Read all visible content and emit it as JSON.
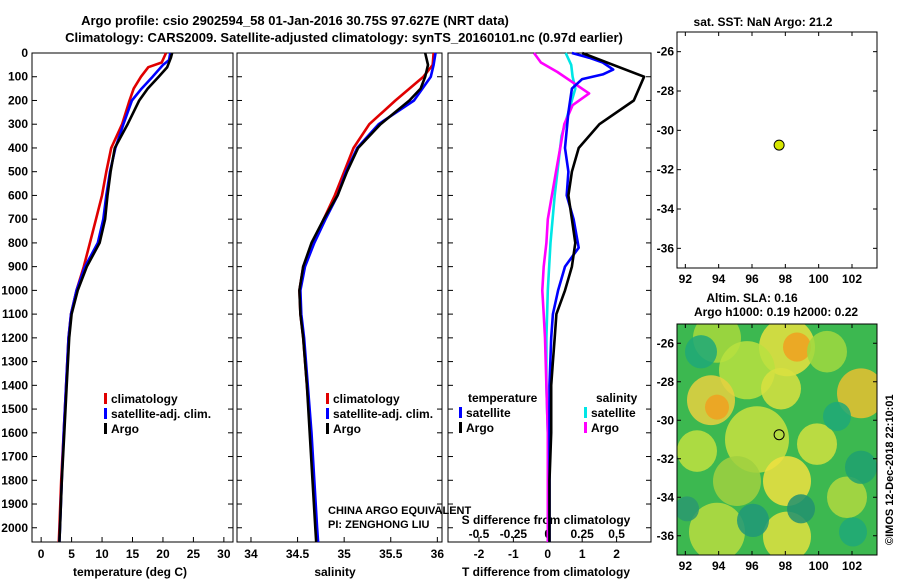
{
  "header": {
    "line1": "Argo profile: csio 2902594_58 01-Jan-2016 30.75S 97.627E (NRT data)",
    "line2": "Climatology: CARS2009. Satellite-adjusted climatology: synTS_20160101.nc (0.97d earlier)"
  },
  "depth_axis": {
    "ticks": [
      "0",
      "100",
      "200",
      "300",
      "400",
      "500",
      "600",
      "700",
      "800",
      "900",
      "1000",
      "1100",
      "1200",
      "1300",
      "1400",
      "1500",
      "1600",
      "1700",
      "1800",
      "1900",
      "2000"
    ],
    "ylim": [
      0,
      2060
    ]
  },
  "colors": {
    "climatology": "#e00000",
    "satellite": "#0000ff",
    "argo": "#000000",
    "sal_satellite": "#00e6e6",
    "sal_argo": "#ff00ff",
    "marker": "#d6e600"
  },
  "chart_data": [
    {
      "type": "line",
      "panel": "temperature",
      "xlabel": "temperature (deg C)",
      "xlim": [
        -1.5,
        31.5
      ],
      "xticks": [
        "0",
        "5",
        "10",
        "15",
        "20",
        "25",
        "30"
      ],
      "legend": [
        "climatology",
        "satellite-adj. clim.",
        "Argo"
      ],
      "series": [
        {
          "name": "climatology",
          "points": [
            [
              20.5,
              0
            ],
            [
              19.8,
              40
            ],
            [
              17.6,
              60
            ],
            [
              16.4,
              100
            ],
            [
              15.2,
              150
            ],
            [
              14.5,
              200
            ],
            [
              13.3,
              300
            ],
            [
              11.5,
              400
            ],
            [
              10.7,
              500
            ],
            [
              10.0,
              600
            ],
            [
              9.0,
              700
            ],
            [
              8.0,
              800
            ],
            [
              7.0,
              900
            ],
            [
              5.8,
              1000
            ],
            [
              4.9,
              1100
            ],
            [
              4.5,
              1200
            ],
            [
              4.1,
              1400
            ],
            [
              3.7,
              1600
            ],
            [
              3.3,
              1800
            ],
            [
              3.0,
              2000
            ],
            [
              2.9,
              2060
            ]
          ]
        },
        {
          "name": "satellite",
          "points": [
            [
              21.2,
              0
            ],
            [
              21.0,
              30
            ],
            [
              20.0,
              50
            ],
            [
              18.3,
              100
            ],
            [
              16.5,
              150
            ],
            [
              14.9,
              200
            ],
            [
              13.5,
              300
            ],
            [
              12.2,
              400
            ],
            [
              11.3,
              500
            ],
            [
              10.7,
              600
            ],
            [
              10.2,
              700
            ],
            [
              9.3,
              800
            ],
            [
              7.2,
              900
            ],
            [
              5.8,
              1000
            ],
            [
              4.9,
              1100
            ],
            [
              4.5,
              1200
            ],
            [
              4.1,
              1400
            ],
            [
              3.7,
              1600
            ],
            [
              3.4,
              1800
            ],
            [
              3.1,
              2000
            ],
            [
              3.0,
              2060
            ]
          ]
        },
        {
          "name": "Argo",
          "points": [
            [
              21.5,
              0
            ],
            [
              21.3,
              20
            ],
            [
              20.7,
              60
            ],
            [
              19.3,
              100
            ],
            [
              17.5,
              150
            ],
            [
              16.1,
              200
            ],
            [
              14.2,
              300
            ],
            [
              12.1,
              400
            ],
            [
              11.4,
              500
            ],
            [
              10.9,
              600
            ],
            [
              10.5,
              700
            ],
            [
              9.6,
              800
            ],
            [
              7.5,
              900
            ],
            [
              6.0,
              1000
            ],
            [
              5.0,
              1100
            ],
            [
              4.6,
              1200
            ],
            [
              4.2,
              1400
            ],
            [
              3.8,
              1600
            ],
            [
              3.4,
              1800
            ],
            [
              3.1,
              2000
            ],
            [
              3.0,
              2060
            ]
          ]
        }
      ]
    },
    {
      "type": "line",
      "panel": "salinity",
      "xlabel": "salinity",
      "xlim": [
        33.85,
        36.05
      ],
      "xticks": [
        "34",
        "34.5",
        "35",
        "35.5",
        "36"
      ],
      "legend": [
        "climatology",
        "satellite-adj. clim.",
        "Argo"
      ],
      "credit": [
        "CHINA ARGO EQUIVALENT",
        "PI: ZENGHONG LIU"
      ],
      "series": [
        {
          "name": "climatology",
          "points": [
            [
              35.96,
              0
            ],
            [
              35.95,
              50
            ],
            [
              35.85,
              100
            ],
            [
              35.55,
              200
            ],
            [
              35.27,
              300
            ],
            [
              35.1,
              400
            ],
            [
              35.0,
              500
            ],
            [
              34.9,
              600
            ],
            [
              34.78,
              700
            ],
            [
              34.66,
              800
            ],
            [
              34.56,
              900
            ],
            [
              34.52,
              1000
            ],
            [
              34.53,
              1100
            ],
            [
              34.56,
              1200
            ],
            [
              34.6,
              1400
            ],
            [
              34.64,
              1600
            ],
            [
              34.67,
              1800
            ],
            [
              34.7,
              2000
            ],
            [
              34.71,
              2060
            ]
          ]
        },
        {
          "name": "satellite",
          "points": [
            [
              35.98,
              0
            ],
            [
              35.96,
              50
            ],
            [
              35.93,
              100
            ],
            [
              35.75,
              200
            ],
            [
              35.37,
              300
            ],
            [
              35.14,
              400
            ],
            [
              35.02,
              500
            ],
            [
              34.93,
              600
            ],
            [
              34.8,
              700
            ],
            [
              34.68,
              800
            ],
            [
              34.58,
              900
            ],
            [
              34.53,
              1000
            ],
            [
              34.54,
              1100
            ],
            [
              34.57,
              1200
            ],
            [
              34.61,
              1400
            ],
            [
              34.65,
              1600
            ],
            [
              34.68,
              1800
            ],
            [
              34.71,
              2000
            ],
            [
              34.72,
              2060
            ]
          ]
        },
        {
          "name": "Argo",
          "points": [
            [
              35.87,
              0
            ],
            [
              35.9,
              50
            ],
            [
              35.87,
              100
            ],
            [
              35.82,
              150
            ],
            [
              35.7,
              200
            ],
            [
              35.39,
              300
            ],
            [
              35.15,
              400
            ],
            [
              35.03,
              500
            ],
            [
              34.93,
              600
            ],
            [
              34.78,
              700
            ],
            [
              34.65,
              800
            ],
            [
              34.56,
              900
            ],
            [
              34.52,
              1000
            ],
            [
              34.53,
              1100
            ],
            [
              34.56,
              1200
            ],
            [
              34.6,
              1400
            ],
            [
              34.63,
              1600
            ],
            [
              34.66,
              1800
            ],
            [
              34.69,
              2000
            ],
            [
              34.7,
              2060
            ]
          ]
        }
      ]
    },
    {
      "type": "line",
      "panel": "differences",
      "xlabel": "T difference from climatology",
      "xlabel_top": "S difference from climatology",
      "xlim": [
        -2.9,
        3.0
      ],
      "xticks": [
        "-2",
        "-1",
        "0",
        "1",
        "2"
      ],
      "sticks": [
        "-0.5",
        "-0.25",
        "0",
        "0.25",
        "0.5"
      ],
      "legend_t": {
        "title": "temperature",
        "items": [
          "satellite",
          "Argo"
        ]
      },
      "legend_s": {
        "title": "salinity",
        "items": [
          "satellite",
          "Argo"
        ]
      },
      "series": [
        {
          "name": "T satellite",
          "points": [
            [
              0.7,
              0
            ],
            [
              1.2,
              20
            ],
            [
              1.6,
              40
            ],
            [
              1.9,
              70
            ],
            [
              1.6,
              90
            ],
            [
              1.0,
              110
            ],
            [
              0.7,
              150
            ],
            [
              0.6,
              250
            ],
            [
              0.5,
              400
            ],
            [
              0.6,
              500
            ],
            [
              0.55,
              600
            ],
            [
              0.75,
              700
            ],
            [
              0.9,
              820
            ],
            [
              0.5,
              900
            ],
            [
              0.3,
              1000
            ],
            [
              0.15,
              1100
            ],
            [
              0.1,
              1200
            ],
            [
              0.05,
              1400
            ],
            [
              0.05,
              1600
            ],
            [
              0.05,
              1800
            ],
            [
              0.05,
              2060
            ]
          ]
        },
        {
          "name": "T Argo",
          "points": [
            [
              1.0,
              0
            ],
            [
              2.8,
              100
            ],
            [
              2.5,
              200
            ],
            [
              1.5,
              300
            ],
            [
              0.9,
              400
            ],
            [
              0.7,
              500
            ],
            [
              0.6,
              600
            ],
            [
              0.7,
              700
            ],
            [
              0.8,
              800
            ],
            [
              0.7,
              900
            ],
            [
              0.5,
              1000
            ],
            [
              0.25,
              1100
            ],
            [
              0.2,
              1200
            ],
            [
              0.15,
              1300
            ],
            [
              0.1,
              1400
            ],
            [
              0.1,
              1600
            ],
            [
              0.05,
              1800
            ],
            [
              0.05,
              2060
            ]
          ]
        },
        {
          "name": "S satellite",
          "points": [
            [
              0.13,
              0
            ],
            [
              0.17,
              50
            ],
            [
              0.18,
              100
            ],
            [
              0.2,
              150
            ],
            [
              0.15,
              250
            ],
            [
              0.1,
              350
            ],
            [
              0.08,
              450
            ],
            [
              0.05,
              600
            ],
            [
              0.02,
              800
            ],
            [
              0.0,
              1000
            ],
            [
              -0.01,
              1200
            ],
            [
              -0.01,
              1400
            ],
            [
              0.0,
              1600
            ],
            [
              0.0,
              1800
            ],
            [
              0.0,
              2060
            ]
          ]
        },
        {
          "name": "S Argo",
          "points": [
            [
              -0.1,
              0
            ],
            [
              -0.05,
              40
            ],
            [
              0.07,
              80
            ],
            [
              0.3,
              170
            ],
            [
              0.18,
              220
            ],
            [
              0.12,
              300
            ],
            [
              0.09,
              400
            ],
            [
              0.06,
              500
            ],
            [
              0.03,
              600
            ],
            [
              0.0,
              700
            ],
            [
              -0.01,
              800
            ],
            [
              -0.03,
              900
            ],
            [
              -0.04,
              1000
            ],
            [
              -0.03,
              1100
            ],
            [
              -0.02,
              1200
            ],
            [
              -0.01,
              1400
            ],
            [
              0.0,
              1600
            ],
            [
              0.0,
              1800
            ],
            [
              0.0,
              2060
            ]
          ]
        }
      ]
    },
    {
      "type": "scatter",
      "panel": "sst_map",
      "title": "sat. SST: NaN Argo: 21.2",
      "xticks": [
        "92",
        "94",
        "96",
        "98",
        "100",
        "102"
      ],
      "yticks": [
        "-26",
        "-28",
        "-30",
        "-32",
        "-34",
        "-36"
      ],
      "xlim": [
        91.5,
        103.5
      ],
      "ylim": [
        -37,
        -25
      ],
      "points": [
        {
          "lon": 97.627,
          "lat": -30.75
        }
      ]
    },
    {
      "type": "heatmap",
      "panel": "sla_map",
      "title_line1": "Altim. SLA: 0.16",
      "title_line2": "Argo h1000: 0.19 h2000: 0.22",
      "xticks": [
        "92",
        "94",
        "96",
        "98",
        "100",
        "102"
      ],
      "yticks": [
        "-26",
        "-28",
        "-30",
        "-32",
        "-34",
        "-36"
      ],
      "xlim": [
        91.5,
        103.5
      ],
      "ylim": [
        -37,
        -25
      ],
      "points": [
        {
          "lon": 97.627,
          "lat": -30.75
        }
      ],
      "watermark": "©IMOS 12-Dec-2018 22:10:01"
    }
  ]
}
